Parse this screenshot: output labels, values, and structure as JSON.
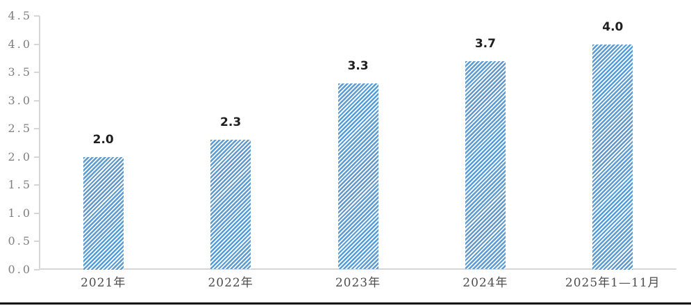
{
  "chart_data": {
    "type": "bar",
    "title": "",
    "categories": [
      "2021年",
      "2022年",
      "2023年",
      "2024年",
      "2025年1—11月"
    ],
    "values": [
      2.0,
      2.3,
      3.3,
      3.7,
      4.0
    ],
    "value_labels": [
      "2.0",
      "2.3",
      "3.3",
      "3.7",
      "4.0"
    ],
    "xlabel": "",
    "ylabel": "",
    "ylim": [
      0,
      4.5
    ],
    "ytick_step": 0.5,
    "ytick_labels": [
      "0.0",
      "0.5",
      "1.0",
      "1.5",
      "2.0",
      "2.5",
      "3.0",
      "3.5",
      "4.0",
      "4.5"
    ],
    "grid": false,
    "legend_position": "none",
    "bar_style": "diagonal-hatch",
    "colors": {
      "bar_stripe": "#5b9bd5",
      "bar_bg": "#ffffff",
      "axis_line": "#d6d6d6",
      "ytick_label": "#7f7f7f",
      "xtick_label": "#4d4d4d",
      "value_label": "#1f1f1f",
      "bottom_rule": "#0a0a0a"
    }
  }
}
